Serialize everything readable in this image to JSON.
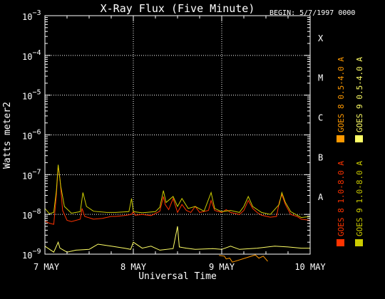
{
  "chart_data": {
    "type": "line",
    "title": "X-Ray Flux (Five Minute)",
    "begin_label": "BEGIN: 5/7/1997 0000",
    "xlabel": "Universal Time",
    "ylabel": "Watts meter2",
    "x_ticks": [
      "7 MAY",
      "8 MAY",
      "9 MAY",
      "10 MAY"
    ],
    "xlim": [
      0,
      3
    ],
    "y_scale": "log",
    "ylim_exponent": [
      -9,
      -3
    ],
    "y_tick_exponents": [
      -9,
      -8,
      -7,
      -6,
      -5,
      -4,
      -3
    ],
    "class_labels": [
      {
        "label": "A",
        "exp": -8
      },
      {
        "label": "B",
        "exp": -7
      },
      {
        "label": "C",
        "exp": -6
      },
      {
        "label": "M",
        "exp": -5
      },
      {
        "label": "X",
        "exp": -4
      }
    ],
    "grid": true,
    "legend_position": "right, vertical",
    "series": [
      {
        "name": "GOES 8 1.0-8.0 A",
        "color": "#ff3300",
        "points": [
          [
            0.0,
            -8.17
          ],
          [
            0.05,
            -8.22
          ],
          [
            0.1,
            -8.25
          ],
          [
            0.13,
            -7.5
          ],
          [
            0.15,
            -6.78
          ],
          [
            0.17,
            -7.1
          ],
          [
            0.2,
            -7.9
          ],
          [
            0.25,
            -8.15
          ],
          [
            0.3,
            -8.18
          ],
          [
            0.4,
            -8.12
          ],
          [
            0.42,
            -7.85
          ],
          [
            0.45,
            -8.05
          ],
          [
            0.55,
            -8.12
          ],
          [
            0.65,
            -8.1
          ],
          [
            0.75,
            -8.05
          ],
          [
            0.8,
            -8.05
          ],
          [
            0.9,
            -8.03
          ],
          [
            0.98,
            -8.0
          ],
          [
            1.0,
            -7.93
          ],
          [
            1.02,
            -8.02
          ],
          [
            1.1,
            -8.0
          ],
          [
            1.2,
            -8.03
          ],
          [
            1.3,
            -7.92
          ],
          [
            1.34,
            -7.55
          ],
          [
            1.36,
            -7.75
          ],
          [
            1.4,
            -7.88
          ],
          [
            1.45,
            -7.6
          ],
          [
            1.5,
            -7.95
          ],
          [
            1.55,
            -7.75
          ],
          [
            1.6,
            -7.9
          ],
          [
            1.65,
            -7.95
          ],
          [
            1.7,
            -7.8
          ],
          [
            1.75,
            -7.95
          ],
          [
            1.85,
            -7.9
          ],
          [
            1.88,
            -7.65
          ],
          [
            1.92,
            -7.9
          ],
          [
            2.0,
            -7.95
          ],
          [
            2.05,
            -7.88
          ],
          [
            2.1,
            -7.95
          ],
          [
            2.2,
            -8.0
          ],
          [
            2.25,
            -7.9
          ],
          [
            2.3,
            -7.65
          ],
          [
            2.35,
            -7.85
          ],
          [
            2.4,
            -7.95
          ],
          [
            2.45,
            -8.02
          ],
          [
            2.55,
            -8.07
          ],
          [
            2.62,
            -8.05
          ],
          [
            2.65,
            -7.7
          ],
          [
            2.68,
            -7.5
          ],
          [
            2.72,
            -7.75
          ],
          [
            2.78,
            -8.0
          ],
          [
            2.85,
            -8.05
          ],
          [
            2.9,
            -8.12
          ],
          [
            3.0,
            -8.15
          ]
        ]
      },
      {
        "name": "GOES 8 0.5-4.0 A",
        "color": "#ff9900",
        "points": [
          [
            1.97,
            -9.03
          ],
          [
            2.03,
            -9.05
          ],
          [
            2.05,
            -9.12
          ],
          [
            2.09,
            -9.1
          ],
          [
            2.12,
            -9.2
          ],
          [
            2.38,
            -9.02
          ],
          [
            2.42,
            -9.1
          ],
          [
            2.47,
            -9.05
          ],
          [
            2.52,
            -9.18
          ]
        ]
      },
      {
        "name": "GOES 9 1.0-8.0 A",
        "color": "#cccc00",
        "points": [
          [
            0.0,
            -7.85
          ],
          [
            0.05,
            -7.98
          ],
          [
            0.1,
            -7.95
          ],
          [
            0.13,
            -7.4
          ],
          [
            0.15,
            -6.75
          ],
          [
            0.18,
            -7.3
          ],
          [
            0.22,
            -7.8
          ],
          [
            0.3,
            -7.97
          ],
          [
            0.4,
            -7.93
          ],
          [
            0.43,
            -7.45
          ],
          [
            0.47,
            -7.8
          ],
          [
            0.55,
            -7.92
          ],
          [
            0.7,
            -7.95
          ],
          [
            0.8,
            -7.95
          ],
          [
            0.95,
            -7.93
          ],
          [
            0.98,
            -7.6
          ],
          [
            1.0,
            -7.93
          ],
          [
            1.1,
            -7.96
          ],
          [
            1.25,
            -7.93
          ],
          [
            1.3,
            -7.82
          ],
          [
            1.34,
            -7.4
          ],
          [
            1.37,
            -7.7
          ],
          [
            1.45,
            -7.55
          ],
          [
            1.5,
            -7.8
          ],
          [
            1.55,
            -7.6
          ],
          [
            1.62,
            -7.85
          ],
          [
            1.7,
            -7.8
          ],
          [
            1.8,
            -7.92
          ],
          [
            1.88,
            -7.45
          ],
          [
            1.92,
            -7.85
          ],
          [
            2.0,
            -7.93
          ],
          [
            2.1,
            -7.9
          ],
          [
            2.2,
            -7.95
          ],
          [
            2.25,
            -7.8
          ],
          [
            2.3,
            -7.55
          ],
          [
            2.35,
            -7.8
          ],
          [
            2.45,
            -7.95
          ],
          [
            2.55,
            -8.0
          ],
          [
            2.65,
            -7.75
          ],
          [
            2.68,
            -7.45
          ],
          [
            2.72,
            -7.7
          ],
          [
            2.78,
            -7.93
          ],
          [
            2.9,
            -8.08
          ],
          [
            3.0,
            -8.05
          ]
        ]
      },
      {
        "name": "GOES 9 0.5-4.0 A",
        "color": "#ffff66",
        "points": [
          [
            0.0,
            -8.8
          ],
          [
            0.1,
            -8.95
          ],
          [
            0.15,
            -8.7
          ],
          [
            0.17,
            -8.85
          ],
          [
            0.25,
            -8.95
          ],
          [
            0.35,
            -8.9
          ],
          [
            0.5,
            -8.88
          ],
          [
            0.6,
            -8.75
          ],
          [
            0.75,
            -8.8
          ],
          [
            0.9,
            -8.85
          ],
          [
            0.97,
            -8.88
          ],
          [
            1.0,
            -8.7
          ],
          [
            1.1,
            -8.85
          ],
          [
            1.2,
            -8.8
          ],
          [
            1.3,
            -8.9
          ],
          [
            1.45,
            -8.86
          ],
          [
            1.5,
            -8.3
          ],
          [
            1.52,
            -8.82
          ],
          [
            1.6,
            -8.85
          ],
          [
            1.7,
            -8.88
          ],
          [
            1.9,
            -8.86
          ],
          [
            2.0,
            -8.88
          ],
          [
            2.1,
            -8.8
          ],
          [
            2.2,
            -8.88
          ],
          [
            2.4,
            -8.85
          ],
          [
            2.6,
            -8.8
          ],
          [
            2.75,
            -8.82
          ],
          [
            2.9,
            -8.85
          ],
          [
            3.0,
            -8.85
          ]
        ]
      }
    ]
  }
}
